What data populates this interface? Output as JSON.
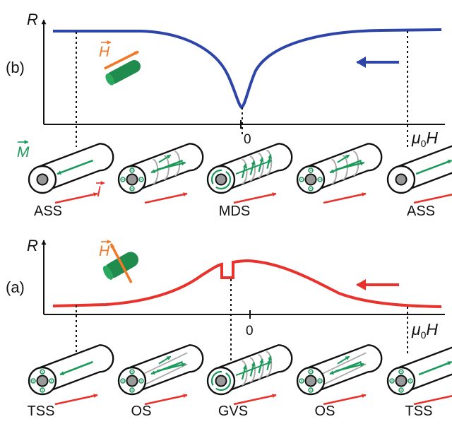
{
  "panel_b": {
    "label": "(b)",
    "y_label": "R",
    "zero_label": "0",
    "x_label": {
      "mu": "μ",
      "sub": "0",
      "var": "H"
    },
    "field_label": "H",
    "m_label": "M",
    "i_label": "I",
    "states": [
      "ASS",
      "MDS",
      "ASS"
    ],
    "curve_color": "#2d45a8"
  },
  "panel_a": {
    "label": "(a)",
    "y_label": "R",
    "zero_label": "0",
    "x_label": {
      "mu": "μ",
      "sub": "0",
      "var": "H"
    },
    "field_label": "H",
    "states": [
      "TSS",
      "OS",
      "GVS",
      "OS",
      "TSS"
    ],
    "curve_color": "#e8322b"
  },
  "colors": {
    "magnetization": "#1a9a5a",
    "current": "#e8322b",
    "field": "#f07828"
  }
}
